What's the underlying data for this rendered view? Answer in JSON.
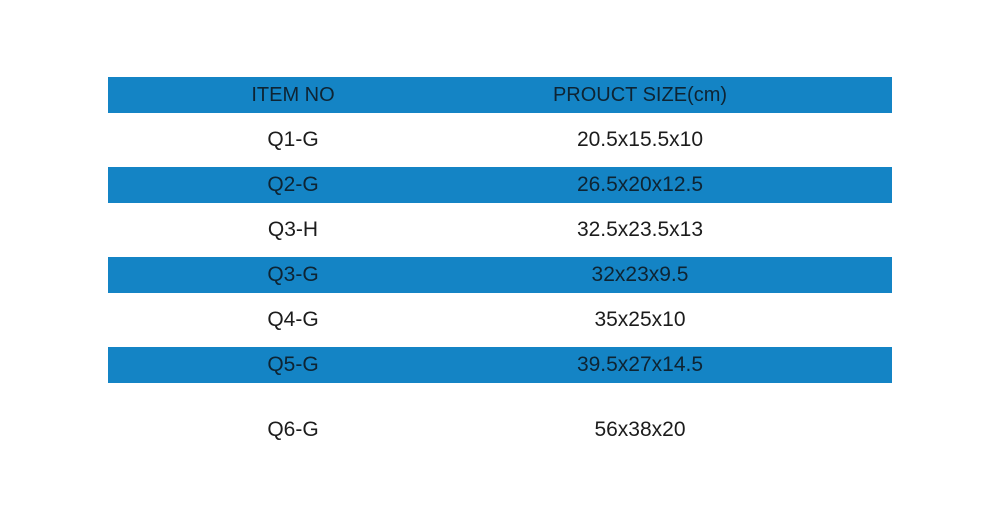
{
  "colors": {
    "accent": "#1484C5",
    "text_on_blue": "#0e2433",
    "text_on_white": "#1c1c1c"
  },
  "table": {
    "headers": [
      "ITEM NO",
      "PROUCT SIZE(cm)"
    ],
    "rows": [
      {
        "item": "Q1-G",
        "size": "20.5x15.5x10"
      },
      {
        "item": "Q2-G",
        "size": "26.5x20x12.5"
      },
      {
        "item": "Q3-H",
        "size": "32.5x23.5x13"
      },
      {
        "item": "Q3-G",
        "size": "32x23x9.5"
      },
      {
        "item": "Q4-G",
        "size": "35x25x10"
      },
      {
        "item": "Q5-G",
        "size": "39.5x27x14.5"
      },
      {
        "item": "Q6-G",
        "size": "56x38x20"
      }
    ]
  },
  "chart_data": {
    "type": "table",
    "title": "",
    "columns": [
      "ITEM NO",
      "PROUCT SIZE(cm)"
    ],
    "rows": [
      [
        "Q1-G",
        "20.5x15.5x10"
      ],
      [
        "Q2-G",
        "26.5x20x12.5"
      ],
      [
        "Q3-H",
        "32.5x23.5x13"
      ],
      [
        "Q3-G",
        "32x23x9.5"
      ],
      [
        "Q4-G",
        "35x25x10"
      ],
      [
        "Q5-G",
        "39.5x27x14.5"
      ],
      [
        "Q6-G",
        "56x38x20"
      ]
    ],
    "layout_hints": {
      "header_fill": "#1484C5",
      "striped_rows": "blue every other data row starting at row 2",
      "text_align": "center"
    }
  }
}
